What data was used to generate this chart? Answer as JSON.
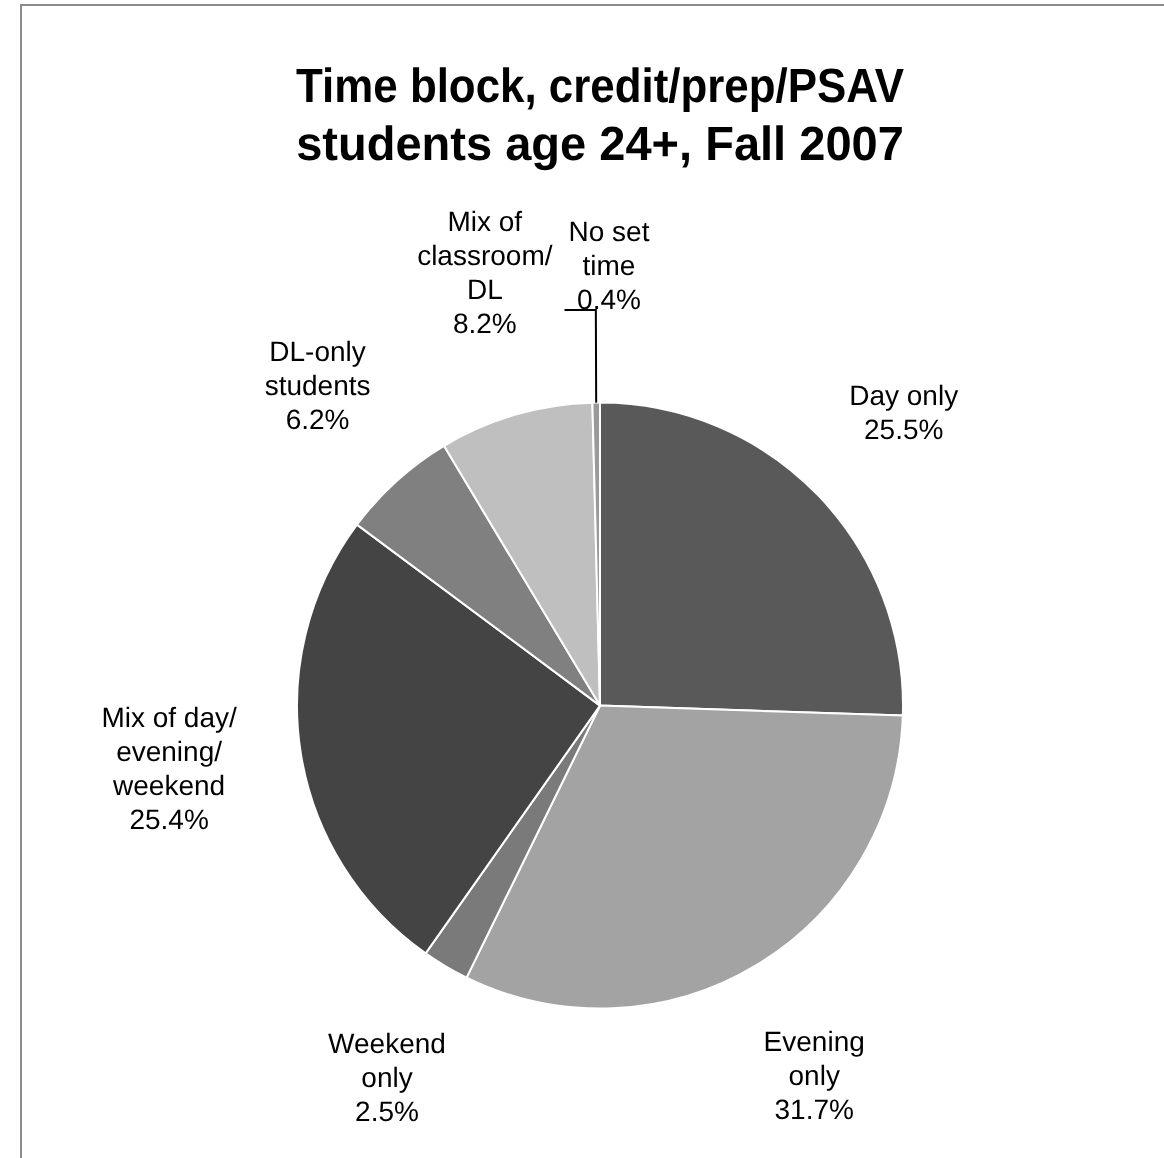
{
  "chart_data": {
    "type": "pie",
    "title": "Time block, credit/prep/PSAV students age 24+, Fall 2007",
    "categories": [
      "Day only",
      "Evening only",
      "Weekend only",
      "Mix of day/ evening/ weekend",
      "DL-only students",
      "Mix of classroom/ DL",
      "No set time"
    ],
    "values": [
      25.5,
      31.7,
      2.5,
      25.4,
      6.2,
      8.2,
      0.4
    ],
    "value_labels": [
      "25.5%",
      "31.7%",
      "2.5%",
      "25.4%",
      "6.2%",
      "8.2%",
      "0.4%"
    ],
    "colors": [
      "#595959",
      "#a3a3a3",
      "#7a7a7a",
      "#444444",
      "#808080",
      "#bfbfbf",
      "#9a9a9a"
    ],
    "legend": false
  }
}
